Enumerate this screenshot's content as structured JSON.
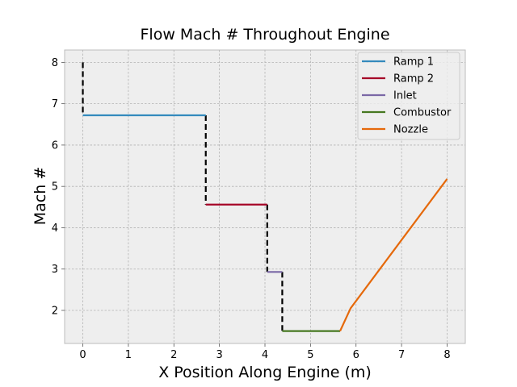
{
  "chart_data": {
    "type": "line",
    "title": "Flow Mach # Throughout Engine",
    "xlabel": "X Position Along Engine (m)",
    "ylabel": "Mach #",
    "xlim": [
      -0.4,
      8.4
    ],
    "ylim": [
      1.2,
      8.3
    ],
    "xticks": [
      0,
      1,
      2,
      3,
      4,
      5,
      6,
      7,
      8
    ],
    "yticks": [
      2,
      3,
      4,
      5,
      6,
      7,
      8
    ],
    "grid": true,
    "legend_position": "top-right",
    "series": [
      {
        "name": "Ramp 1",
        "color": "#348abd",
        "x": [
          0,
          2.7
        ],
        "y": [
          6.72,
          6.72
        ]
      },
      {
        "name": "Ramp 2",
        "color": "#a60628",
        "x": [
          2.7,
          4.05
        ],
        "y": [
          4.56,
          4.56
        ]
      },
      {
        "name": "Inlet",
        "color": "#7a68a6",
        "x": [
          4.05,
          4.38
        ],
        "y": [
          2.93,
          2.93
        ]
      },
      {
        "name": "Combustor",
        "color": "#467821",
        "x": [
          4.38,
          5.65
        ],
        "y": [
          1.5,
          1.5
        ]
      },
      {
        "name": "Nozzle",
        "color": "#e5690b",
        "x": [
          5.65,
          5.88,
          8.0
        ],
        "y": [
          1.5,
          2.05,
          5.18
        ]
      }
    ],
    "shock_lines": {
      "color": "#000000",
      "style": "dashed",
      "segments": [
        {
          "x": [
            0,
            0
          ],
          "y": [
            8.0,
            6.72
          ]
        },
        {
          "x": [
            2.7,
            2.7
          ],
          "y": [
            6.72,
            4.56
          ]
        },
        {
          "x": [
            4.05,
            4.05
          ],
          "y": [
            4.56,
            2.93
          ]
        },
        {
          "x": [
            4.38,
            4.38
          ],
          "y": [
            2.93,
            1.5
          ]
        }
      ]
    }
  }
}
